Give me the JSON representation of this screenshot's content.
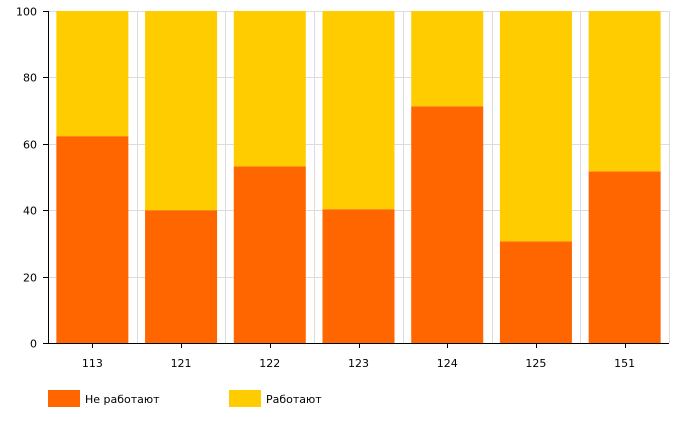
{
  "chart_data": {
    "type": "bar",
    "stacked": true,
    "categories": [
      "113",
      "121",
      "122",
      "123",
      "124",
      "125",
      "151"
    ],
    "series": [
      {
        "name": "Не работают",
        "values": [
          62.3,
          40.0,
          53.2,
          40.3,
          71.3,
          30.6,
          51.7
        ],
        "color": "#ff6600"
      },
      {
        "name": "Работают",
        "values": [
          37.7,
          60.0,
          46.8,
          59.7,
          28.7,
          69.4,
          48.3
        ],
        "color": "#ffcc00"
      }
    ],
    "title": "",
    "xlabel": "",
    "ylabel": "",
    "ylim": [
      0,
      100
    ],
    "yticks": [
      "0",
      "20",
      "40",
      "60",
      "80",
      "100"
    ],
    "grid": true,
    "legend_position": "bottom-left"
  }
}
